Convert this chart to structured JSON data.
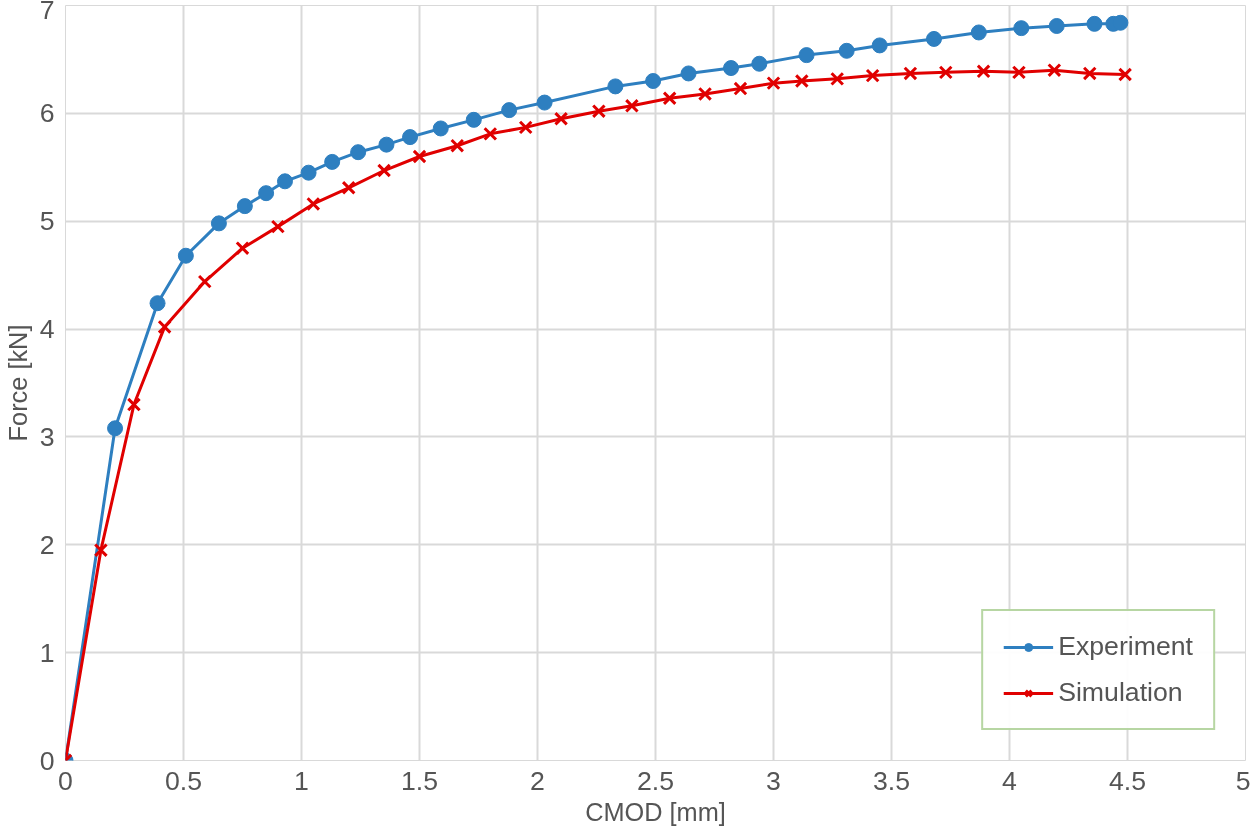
{
  "chart_data": {
    "type": "line",
    "xlabel": "CMOD [mm]",
    "ylabel": "Force [kN]",
    "xlim": [
      0,
      5
    ],
    "ylim": [
      0,
      7
    ],
    "xticks": [
      0,
      0.5,
      1,
      1.5,
      2,
      2.5,
      3,
      3.5,
      4,
      4.5,
      5
    ],
    "yticks": [
      0,
      1,
      2,
      3,
      4,
      5,
      6,
      7
    ],
    "grid": true,
    "legend": "bottom right",
    "series": [
      {
        "name": "Experiment",
        "color": "#2e7fc0",
        "marker": "circle",
        "x": [
          0,
          0.21,
          0.39,
          0.51,
          0.65,
          0.76,
          0.85,
          0.93,
          1.03,
          1.13,
          1.24,
          1.36,
          1.46,
          1.59,
          1.73,
          1.88,
          2.03,
          2.33,
          2.49,
          2.64,
          2.82,
          2.94,
          3.14,
          3.31,
          3.45,
          3.68,
          3.87,
          4.05,
          4.2,
          4.36,
          4.44,
          4.47
        ],
        "values": [
          0,
          3.08,
          4.24,
          4.68,
          4.98,
          5.14,
          5.26,
          5.37,
          5.45,
          5.55,
          5.64,
          5.71,
          5.78,
          5.86,
          5.94,
          6.03,
          6.1,
          6.25,
          6.3,
          6.37,
          6.42,
          6.46,
          6.54,
          6.58,
          6.63,
          6.69,
          6.75,
          6.79,
          6.81,
          6.83,
          6.83,
          6.84
        ]
      },
      {
        "name": "Simulation",
        "color": "#e00000",
        "marker": "cross",
        "x": [
          0,
          0.15,
          0.29,
          0.42,
          0.59,
          0.75,
          0.9,
          1.05,
          1.2,
          1.35,
          1.5,
          1.66,
          1.8,
          1.95,
          2.1,
          2.26,
          2.4,
          2.56,
          2.71,
          2.86,
          3.0,
          3.12,
          3.27,
          3.42,
          3.58,
          3.73,
          3.89,
          4.04,
          4.19,
          4.34,
          4.49
        ],
        "values": [
          0,
          1.95,
          3.3,
          4.02,
          4.44,
          4.75,
          4.95,
          5.16,
          5.31,
          5.47,
          5.6,
          5.7,
          5.81,
          5.87,
          5.95,
          6.02,
          6.07,
          6.14,
          6.18,
          6.23,
          6.28,
          6.3,
          6.32,
          6.35,
          6.37,
          6.38,
          6.39,
          6.38,
          6.4,
          6.37,
          6.36
        ]
      }
    ]
  }
}
